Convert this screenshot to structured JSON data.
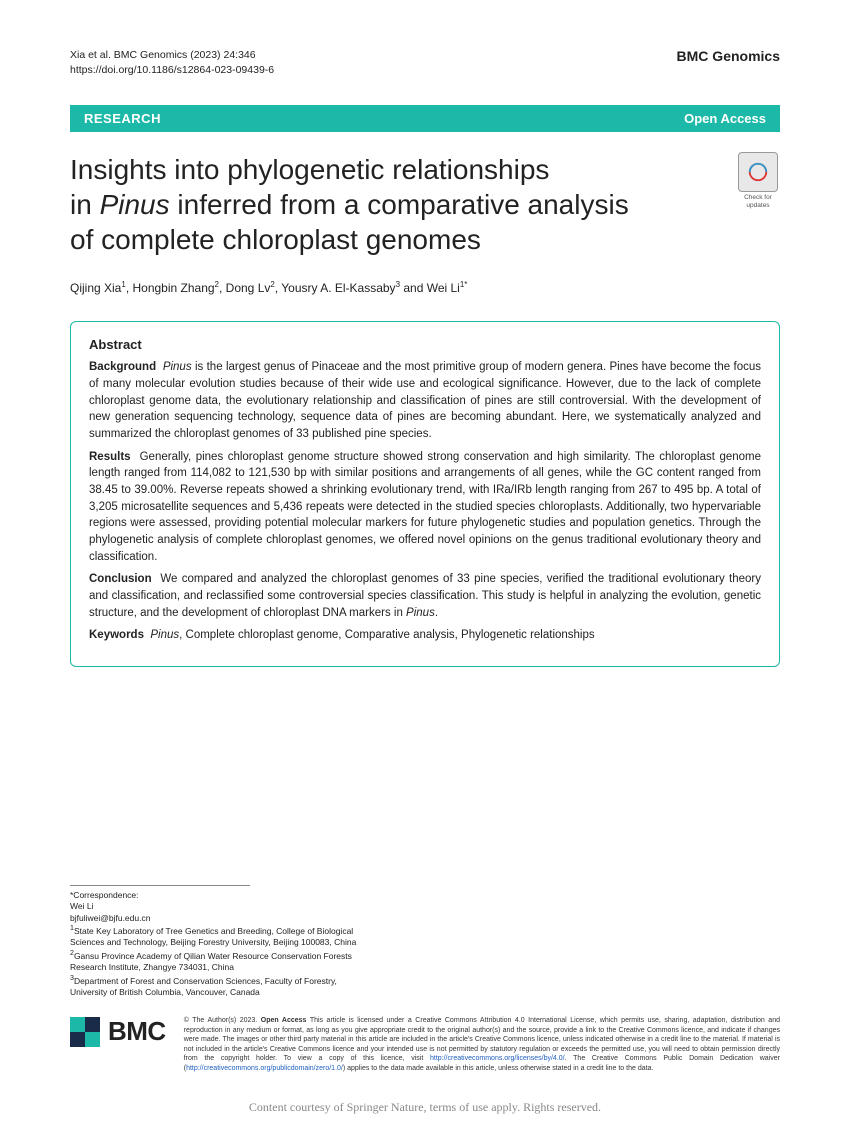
{
  "meta": {
    "citation": "Xia et al. BMC Genomics       (2023) 24:346",
    "doi": "https://doi.org/10.1186/s12864-023-09439-6",
    "journal": "BMC Genomics"
  },
  "banner": {
    "research": "RESEARCH",
    "open_access": "Open Access"
  },
  "title": {
    "line1": "Insights into phylogenetic relationships",
    "line2_pre": "in ",
    "line2_italic": "Pinus",
    "line2_post": " inferred from a comparative analysis",
    "line3": "of complete chloroplast genomes"
  },
  "check_updates": "Check for updates",
  "authors_html": "Qijing Xia<sup>1</sup>, Hongbin Zhang<sup>2</sup>, Dong Lv<sup>2</sup>, Yousry A. El-Kassaby<sup>3</sup> and Wei Li<sup>1*</sup>",
  "abstract": {
    "heading": "Abstract",
    "background_label": "Background",
    "background_italic": "Pinus",
    "background_text": " is the largest genus of Pinaceae and the most primitive group of modern genera. Pines have become the focus of many molecular evolution studies because of their wide use and ecological significance. However, due to the lack of complete chloroplast genome data, the evolutionary relationship and classification of pines are still controversial. With the development of new generation sequencing technology, sequence data of pines are becoming abundant. Here, we systematically analyzed and summarized the chloroplast genomes of 33 published pine species.",
    "results_label": "Results",
    "results_text": "Generally, pines chloroplast genome structure showed strong conservation and high similarity. The chloroplast genome length ranged from 114,082 to 121,530 bp with similar positions and arrangements of all genes, while the GC content ranged from 38.45 to 39.00%. Reverse repeats showed a shrinking evolutionary trend, with IRa/IRb length ranging from 267 to 495 bp. A total of 3,205 microsatellite sequences and 5,436 repeats were detected in the studied species chloroplasts. Additionally, two hypervariable regions were assessed, providing potential molecular markers for future phylogenetic studies and population genetics. Through the phylogenetic analysis of complete chloroplast genomes, we offered novel opinions on the genus traditional evolutionary theory and classification.",
    "conclusion_label": "Conclusion",
    "conclusion_text": "We compared and analyzed the chloroplast genomes of 33 pine species, verified the traditional evolutionary theory and classification, and reclassified some controversial species classification. This study is helpful in analyzing the evolution, genetic structure, and the development of chloroplast DNA markers in ",
    "conclusion_italic": "Pinus",
    "conclusion_post": ".",
    "keywords_label": "Keywords",
    "keywords_italic": "Pinus",
    "keywords_text": ", Complete chloroplast genome, Comparative analysis, Phylogenetic relationships"
  },
  "correspondence": {
    "label": "*Correspondence:",
    "name": "Wei Li",
    "email": "bjfuliwei@bjfu.edu.cn",
    "aff1": "<sup>1</sup>State Key Laboratory of Tree Genetics and Breeding, College of Biological Sciences and Technology, Beijing Forestry University, Beijing 100083, China",
    "aff2": "<sup>2</sup>Gansu Province Academy of Qilian Water Resource Conservation Forests Research Institute, Zhangye 734031, China",
    "aff3": "<sup>3</sup>Department of Forest and Conservation Sciences, Faculty of Forestry, University of British Columbia, Vancouver, Canada"
  },
  "bmc": "BMC",
  "license": {
    "text_pre": "© The Author(s) 2023. ",
    "bold": "Open Access",
    "text_mid": " This article is licensed under a Creative Commons Attribution 4.0 International License, which permits use, sharing, adaptation, distribution and reproduction in any medium or format, as long as you give appropriate credit to the original author(s) and the source, provide a link to the Creative Commons licence, and indicate if changes were made. The images or other third party material in this article are included in the article's Creative Commons licence, unless indicated otherwise in a credit line to the material. If material is not included in the article's Creative Commons licence and your intended use is not permitted by statutory regulation or exceeds the permitted use, you will need to obtain permission directly from the copyright holder. To view a copy of this licence, visit ",
    "link1": "http://creativecommons.org/licenses/by/4.0/",
    "text_mid2": ". The Creative Commons Public Domain Dedication waiver (",
    "link2": "http://creativecommons.org/publicdomain/zero/1.0/",
    "text_post": ") applies to the data made available in this article, unless otherwise stated in a credit line to the data."
  },
  "watermark": "Content courtesy of Springer Nature, terms of use apply. Rights reserved.",
  "colors": {
    "accent": "#1db9a8",
    "bmc_teal": "#1db9a8",
    "bmc_navy": "#1a2b4a"
  }
}
